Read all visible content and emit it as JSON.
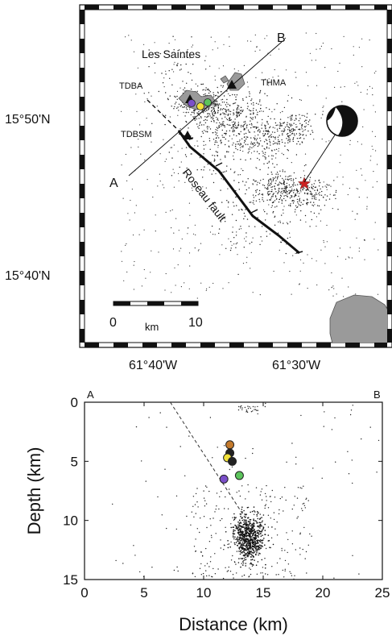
{
  "map": {
    "lat_labels": [
      "15°50'N",
      "15°40'N"
    ],
    "lon_labels": [
      "61°40'W",
      "61°30'W"
    ],
    "place_labels": {
      "les_saintes": "Les Saintes",
      "tdba": "TDBA",
      "thma": "THMA",
      "tdbsm": "TDBSM",
      "fault": "Roseau fault"
    },
    "profile_labels": {
      "start": "A",
      "end": "B"
    },
    "scale_bar": {
      "start": "0",
      "unit": "km",
      "end": "10"
    },
    "marker_colors": {
      "purple": "#7b4fc9",
      "yellow": "#f2e23a",
      "green": "#5cc45c",
      "mainshock_star": "#cc2222",
      "land": "#9a9a9a"
    }
  },
  "chart_data": {
    "type": "scatter",
    "title": "",
    "xlabel": "Distance (km)",
    "ylabel": "Depth (km)",
    "xlim": [
      0,
      25
    ],
    "ylim": [
      15,
      0
    ],
    "xticks": [
      "0",
      "5",
      "10",
      "15",
      "20",
      "25"
    ],
    "yticks": [
      "0",
      "5",
      "10",
      "15"
    ],
    "corner_labels": {
      "left": "A",
      "right": "B"
    },
    "highlighted_events": [
      {
        "color": "#c47a2c",
        "x": 12.2,
        "y": 3.6
      },
      {
        "color": "#222222",
        "x": 12.2,
        "y": 4.3
      },
      {
        "color": "#f2e23a",
        "x": 12.0,
        "y": 4.7
      },
      {
        "color": "#222222",
        "x": 12.4,
        "y": 5.0
      },
      {
        "color": "#5cc45c",
        "x": 13.0,
        "y": 6.2
      },
      {
        "color": "#7b4fc9",
        "x": 11.7,
        "y": 6.5
      }
    ],
    "fault_dashed_line": {
      "x": [
        7.2,
        13.5
      ],
      "y": [
        0.0,
        9.8
      ]
    }
  }
}
